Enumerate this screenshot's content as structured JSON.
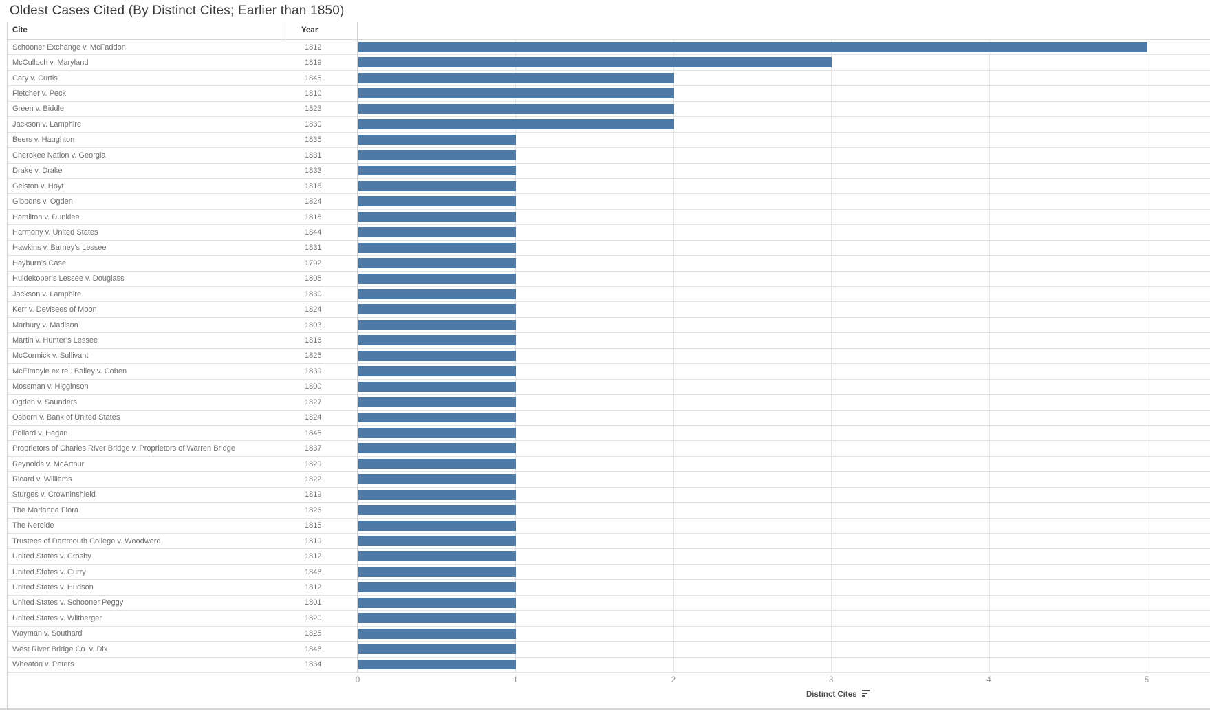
{
  "title": "Oldest Cases Cited (By Distinct Cites; Earlier than 1850)",
  "columns": {
    "cite": "Cite",
    "year": "Year"
  },
  "axis": {
    "title": "Distinct Cites",
    "ticks": [
      0,
      1,
      2,
      3,
      4,
      5
    ],
    "max": 5.4,
    "sort_icon": "sort-descending-icon"
  },
  "colors": {
    "bar": "#4e7aa8",
    "gridline": "#e6e6e6",
    "row_separator": "#e2e2e2",
    "text": "#6f6f6f",
    "header_text": "#333333"
  },
  "chart_data": {
    "type": "bar",
    "orientation": "horizontal",
    "title": "Oldest Cases Cited (By Distinct Cites; Earlier than 1850)",
    "xlabel": "Distinct Cites",
    "ylabel": "Cite / Year",
    "xlim": [
      0,
      5.4
    ],
    "x_ticks": [
      0,
      1,
      2,
      3,
      4,
      5
    ],
    "grid": true,
    "sort": "descending by Distinct Cites",
    "rows": [
      {
        "cite": "Schooner Exchange v. McFaddon",
        "year": "1812",
        "distinct_cites": 5
      },
      {
        "cite": "McCulloch v. Maryland",
        "year": "1819",
        "distinct_cites": 3
      },
      {
        "cite": "Cary v. Curtis",
        "year": "1845",
        "distinct_cites": 2
      },
      {
        "cite": "Fletcher v. Peck",
        "year": "1810",
        "distinct_cites": 2
      },
      {
        "cite": "Green v. Biddle",
        "year": "1823",
        "distinct_cites": 2
      },
      {
        "cite": "Jackson v. Lamphire",
        "year": "1830",
        "distinct_cites": 2
      },
      {
        "cite": "Beers v. Haughton",
        "year": "1835",
        "distinct_cites": 1
      },
      {
        "cite": "Cherokee Nation v. Georgia",
        "year": "1831",
        "distinct_cites": 1
      },
      {
        "cite": "Drake v. Drake",
        "year": "1833",
        "distinct_cites": 1
      },
      {
        "cite": "Gelston v. Hoyt",
        "year": "1818",
        "distinct_cites": 1
      },
      {
        "cite": "Gibbons v. Ogden",
        "year": "1824",
        "distinct_cites": 1
      },
      {
        "cite": "Hamilton v. Dunklee",
        "year": "1818",
        "distinct_cites": 1
      },
      {
        "cite": "Harmony v. United States",
        "year": "1844",
        "distinct_cites": 1
      },
      {
        "cite": "Hawkins v. Barney’s Lessee",
        "year": "1831",
        "distinct_cites": 1
      },
      {
        "cite": "Hayburn’s Case",
        "year": "1792",
        "distinct_cites": 1
      },
      {
        "cite": "Huidekoper’s Lessee v. Douglass",
        "year": "1805",
        "distinct_cites": 1
      },
      {
        "cite": "Jackson v. Lamphire",
        "year": "1830",
        "distinct_cites": 1
      },
      {
        "cite": "Kerr v. Devisees of Moon",
        "year": "1824",
        "distinct_cites": 1
      },
      {
        "cite": "Marbury v. Madison",
        "year": "1803",
        "distinct_cites": 1
      },
      {
        "cite": "Martin v. Hunter’s Lessee",
        "year": "1816",
        "distinct_cites": 1
      },
      {
        "cite": "McCormick v. Sullivant",
        "year": "1825",
        "distinct_cites": 1
      },
      {
        "cite": "McElmoyle ex rel. Bailey v. Cohen",
        "year": "1839",
        "distinct_cites": 1
      },
      {
        "cite": "Mossman v. Higginson",
        "year": "1800",
        "distinct_cites": 1
      },
      {
        "cite": "Ogden v. Saunders",
        "year": "1827",
        "distinct_cites": 1
      },
      {
        "cite": "Osborn v. Bank of United States",
        "year": "1824",
        "distinct_cites": 1
      },
      {
        "cite": "Pollard v. Hagan",
        "year": "1845",
        "distinct_cites": 1
      },
      {
        "cite": "Proprietors of Charles River Bridge v. Proprietors of Warren Bridge",
        "year": "1837",
        "distinct_cites": 1
      },
      {
        "cite": "Reynolds v. McArthur",
        "year": "1829",
        "distinct_cites": 1
      },
      {
        "cite": "Ricard v. Williams",
        "year": "1822",
        "distinct_cites": 1
      },
      {
        "cite": "Sturges v. Crowninshield",
        "year": "1819",
        "distinct_cites": 1
      },
      {
        "cite": "The Marianna Flora",
        "year": "1826",
        "distinct_cites": 1
      },
      {
        "cite": "The Nereide",
        "year": "1815",
        "distinct_cites": 1
      },
      {
        "cite": "Trustees of Dartmouth College v. Woodward",
        "year": "1819",
        "distinct_cites": 1
      },
      {
        "cite": "United States v. Crosby",
        "year": "1812",
        "distinct_cites": 1
      },
      {
        "cite": "United States v. Curry",
        "year": "1848",
        "distinct_cites": 1
      },
      {
        "cite": "United States v. Hudson",
        "year": "1812",
        "distinct_cites": 1
      },
      {
        "cite": "United States v. Schooner Peggy",
        "year": "1801",
        "distinct_cites": 1
      },
      {
        "cite": "United States v. Wiltberger",
        "year": "1820",
        "distinct_cites": 1
      },
      {
        "cite": "Wayman v. Southard",
        "year": "1825",
        "distinct_cites": 1
      },
      {
        "cite": "West River Bridge Co. v. Dix",
        "year": "1848",
        "distinct_cites": 1
      },
      {
        "cite": "Wheaton v. Peters",
        "year": "1834",
        "distinct_cites": 1
      }
    ]
  }
}
